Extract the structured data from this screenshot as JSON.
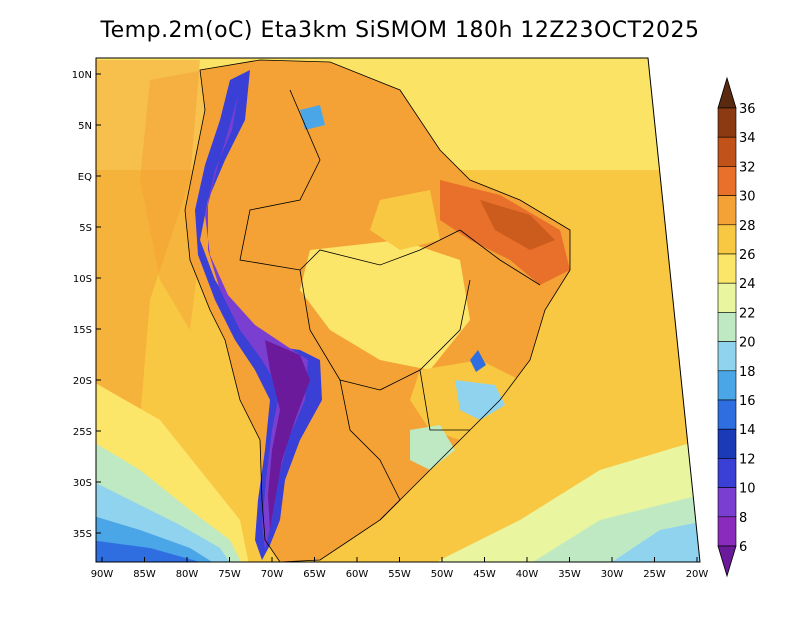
{
  "title": "Temp.2m(oC) Eta3km SiSMOM 180h 12Z23OCT2025",
  "map": {
    "lat_labels": [
      "10N",
      "5N",
      "EQ",
      "5S",
      "10S",
      "15S",
      "20S",
      "25S",
      "30S",
      "35S"
    ],
    "lon_labels": [
      "90W",
      "85W",
      "80W",
      "75W",
      "70W",
      "65W",
      "60W",
      "55W",
      "50W",
      "45W",
      "40W",
      "35W",
      "30W",
      "25W",
      "20W"
    ]
  },
  "colorbar": {
    "labels": [
      "36",
      "34",
      "32",
      "30",
      "28",
      "26",
      "24",
      "22",
      "20",
      "18",
      "16",
      "14",
      "12",
      "10",
      "8",
      "6"
    ],
    "colors": [
      "#5a2a10",
      "#8b3a12",
      "#c0521a",
      "#e8702a",
      "#f4a236",
      "#f9c842",
      "#fbe66a",
      "#eaf5a0",
      "#bfe9c2",
      "#8fd3ee",
      "#4aa6e6",
      "#2f6ee0",
      "#1a3ab8",
      "#3a3fd6",
      "#7a3fd0",
      "#8a2bbd",
      "#6a1a9a"
    ],
    "top_color": "#5a2a10",
    "bottom_color": "#6a1a9a"
  }
}
